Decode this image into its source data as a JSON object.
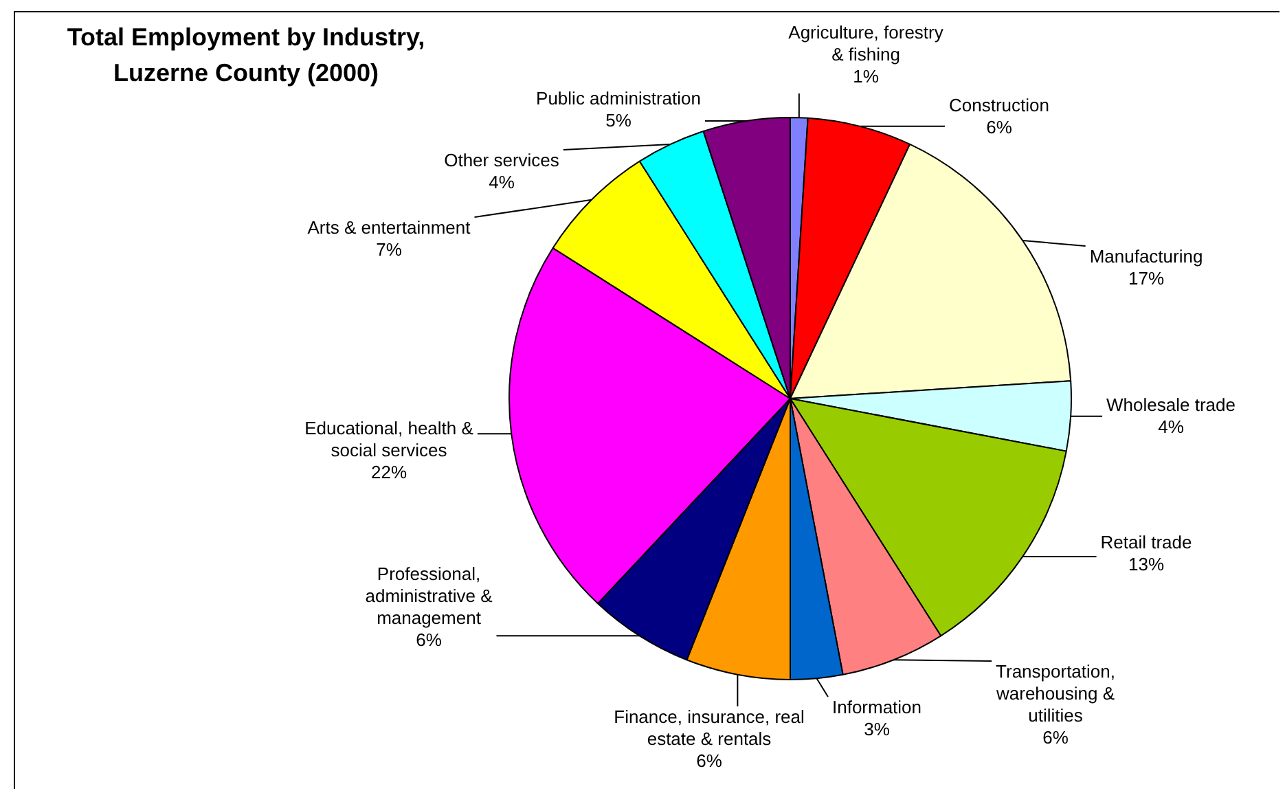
{
  "chart_data": {
    "type": "pie",
    "title": "Total Employment by Industry, Luzerne County (2000)",
    "categories": [
      "Agriculture, forestry & fishing",
      "Construction",
      "Manufacturing",
      "Wholesale trade",
      "Retail trade",
      "Transportation, warehousing & utilities",
      "Information",
      "Finance, insurance, real estate & rentals",
      "Professional, administrative & management",
      "Educational, health & social services",
      "Arts & entertainment",
      "Other services",
      "Public administration"
    ],
    "values": [
      1,
      6,
      17,
      4,
      13,
      6,
      3,
      6,
      6,
      22,
      7,
      4,
      5
    ],
    "colors": [
      "#8080ff",
      "#ff0000",
      "#ffffcc",
      "#ccffff",
      "#99cc00",
      "#ff8080",
      "#0066cc",
      "#ff9900",
      "#000080",
      "#ff00ff",
      "#ffff00",
      "#00ffff",
      "#800080"
    ],
    "value_labels": [
      "1%",
      "6%",
      "17%",
      "4%",
      "13%",
      "6%",
      "3%",
      "6%",
      "6%",
      "22%",
      "7%",
      "4%",
      "5%"
    ]
  }
}
